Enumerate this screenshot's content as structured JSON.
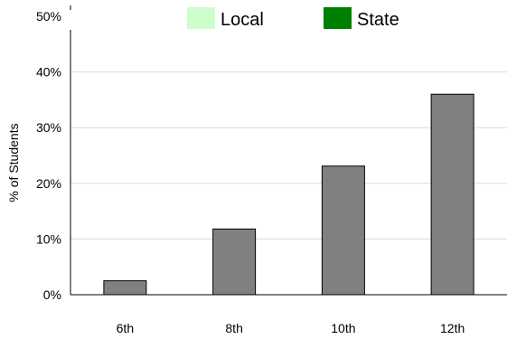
{
  "chart_data": {
    "type": "bar",
    "title": "",
    "xlabel": "",
    "ylabel": "% of Students",
    "categories": [
      "6th",
      "8th",
      "10th",
      "12th"
    ],
    "ylim": [
      0,
      50
    ],
    "yticks": [
      0,
      10,
      20,
      30,
      40,
      50
    ],
    "ytick_labels": [
      "0%",
      "10%",
      "20%",
      "30%",
      "40%",
      "50%"
    ],
    "grid": true,
    "legend_position": "top",
    "legend": [
      {
        "name": "Local",
        "color": "#ccffcc"
      },
      {
        "name": "State",
        "color": "#008000"
      }
    ],
    "series": [
      {
        "values": [
          2.5,
          11.8,
          23.1,
          36.0
        ],
        "color": "#808080"
      }
    ]
  }
}
